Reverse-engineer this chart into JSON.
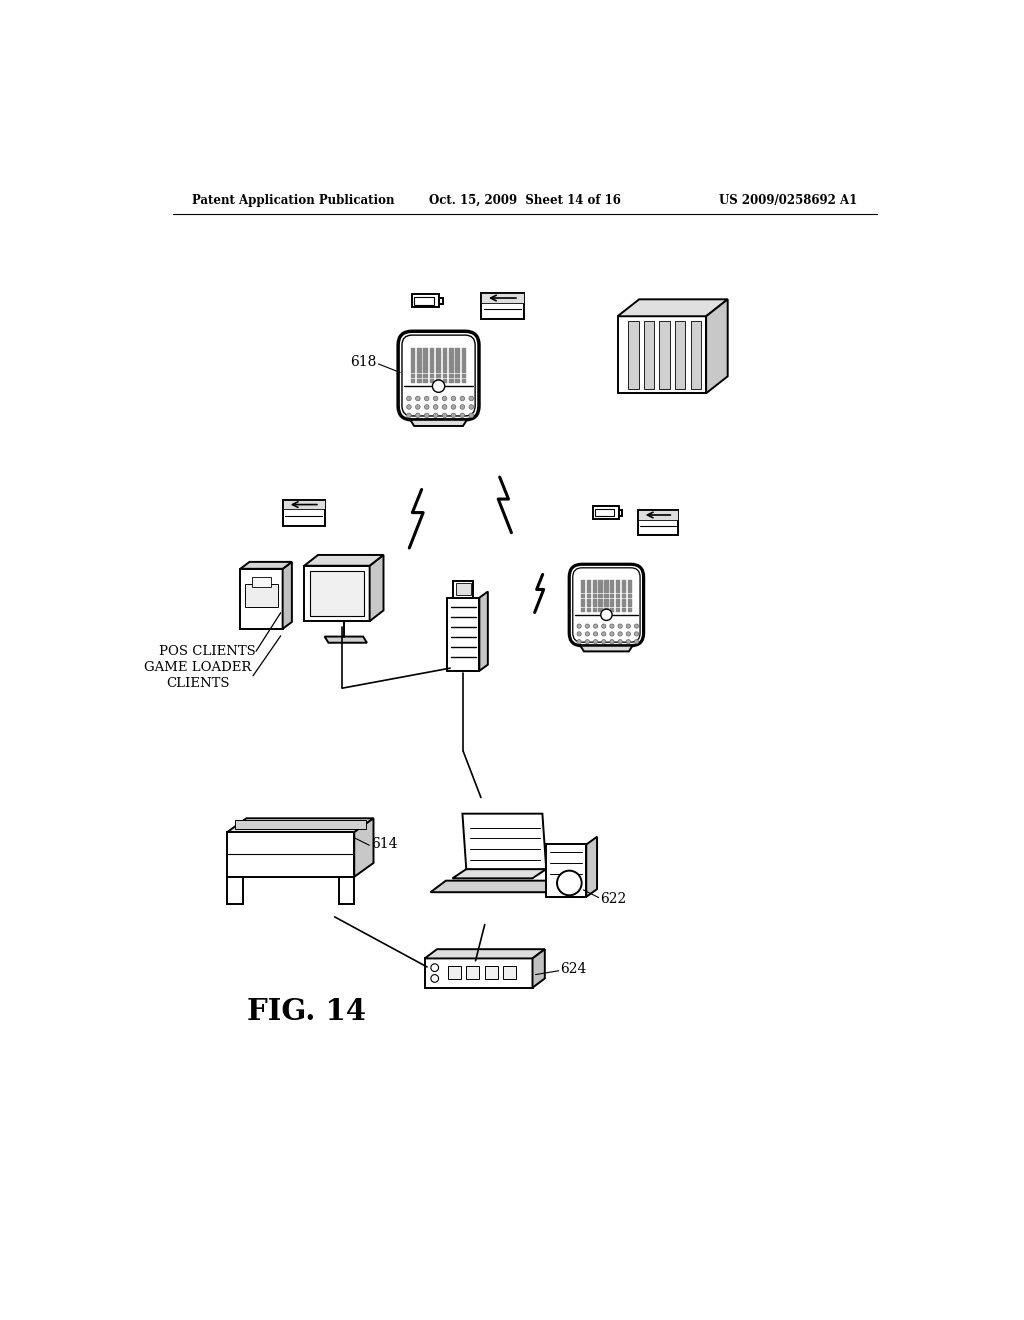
{
  "header_left": "Patent Application Publication",
  "header_mid": "Oct. 15, 2009  Sheet 14 of 16",
  "header_right": "US 2009/0258692 A1",
  "fig_label": "FIG. 14",
  "ref_618": "618",
  "ref_614": "614",
  "ref_622": "622",
  "ref_624": "624",
  "label_pos": "POS CLIENTS",
  "label_game": "GAME LOADER\nCLIENTS",
  "bg": "#ffffff",
  "black": "#000000",
  "gray_light": "#d8d8d8",
  "gray_mid": "#c0c0c0",
  "gray_dark": "#a0a0a0"
}
